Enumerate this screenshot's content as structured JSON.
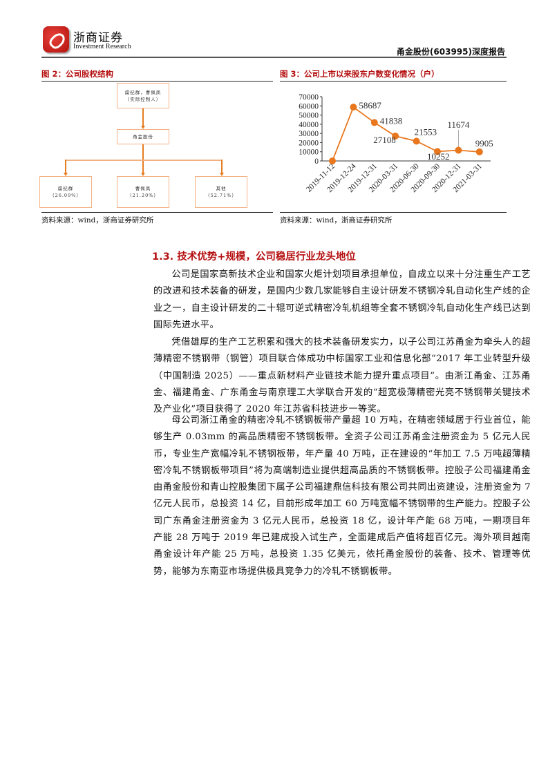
{
  "header": {
    "logo_cn": "浙商证券",
    "logo_en": "Investment Research",
    "doc_title": "甬金股份(603995)深度报告"
  },
  "fig2": {
    "title": "图 2：公司股权结构",
    "top_line1": "虞纪群，曹佩凤",
    "top_line2": "（实际控制人）",
    "middle": "甬金股份",
    "holders": [
      {
        "name": "虞纪群",
        "pct": "（26.09%）"
      },
      {
        "name": "曹佩凤",
        "pct": "（21.20%）"
      },
      {
        "name": "其他",
        "pct": "（52.71%）"
      }
    ],
    "source": "资料来源：wind，浙商证券研究所"
  },
  "fig3": {
    "title": "图 3：公司上市以来股东户数变化情况（户）",
    "source": "资料来源：wind，浙商证券研究所"
  },
  "chart_data": {
    "type": "line",
    "title": "公司上市以来股东户数变化情况（户）",
    "categories": [
      "2019-11-12",
      "2019-12-24",
      "2019-12-31",
      "2020-03-31",
      "2020-06-30",
      "2020-09-30",
      "2020-12-31",
      "2021-03-31"
    ],
    "values": [
      33,
      58687,
      41838,
      27108,
      21553,
      10252,
      11674,
      9905
    ],
    "ylim": [
      0,
      70000
    ],
    "yticks": [
      "0",
      "10000",
      "20000",
      "30000",
      "40000",
      "50000",
      "60000",
      "70000"
    ],
    "grid": false,
    "color": "#e8771e"
  },
  "section": {
    "heading": "1.3. 技术优势+规模，公司稳居行业龙头地位"
  },
  "paragraphs": [
    "公司是国家高新技术企业和国家火炬计划项目承担单位，自成立以来十分注重生产工艺的改进和技术装备的研发，是国内少数几家能够自主设计研发不锈钢冷轧自动化生产线的企业之一，自主设计研发的二十辊可逆式精密冷轧机组等全套不锈钢冷轧自动化生产线已达到国际先进水平。",
    "凭借雄厚的生产工艺积累和强大的技术装备研发实力，以子公司江苏甬金为牵头人的超薄精密不锈钢带（钢管）项目联合体成功中标国家工业和信息化部“2017 年工业转型升级（中国制造 2025）——重点新材料产业链技术能力提升重点项目”。由浙江甬金、江苏甬金、福建甬金、广东甬金与南京理工大学联合开发的“超宽极薄精密光亮不锈钢带关键技术及产业化”项目获得了 2020 年江苏省科技进步一等奖。",
    "母公司浙江甬金的精密冷轧不锈钢板带产量超 10 万吨，在精密领域居于行业首位，能够生产 0.03mm 的高品质精密不锈钢板带。全资子公司江苏甬金注册资金为 5 亿元人民币，专业生产宽幅冷轧不锈钢板带，年产量 40 万吨，正在建设的“年加工 7.5 万吨超薄精密冷轧不锈钢板带项目”将为高端制造业提供超高品质的不锈钢板带。控股子公司福建甬金由甬金股份和青山控股集团下属子公司福建鼎信科技有限公司共同出资建设，注册资金为 7 亿元人民币，总投资 14 亿，目前形成年加工 60 万吨宽幅不锈钢带的生产能力。控股子公司广东甬金注册资金为 3 亿元人民币，总投资 18 亿，设计年产能 68 万吨，一期项目年产能 28 万吨于 2019 年已建成投入试生产，全面建成后产值将超百亿元。海外项目越南甬金设计年产能 25 万吨，总投资 1.35 亿美元，依托甬金股份的装备、技术、管理等优势，能够为东南亚市场提供极具竞争力的冷轧不锈钢板带。"
  ]
}
